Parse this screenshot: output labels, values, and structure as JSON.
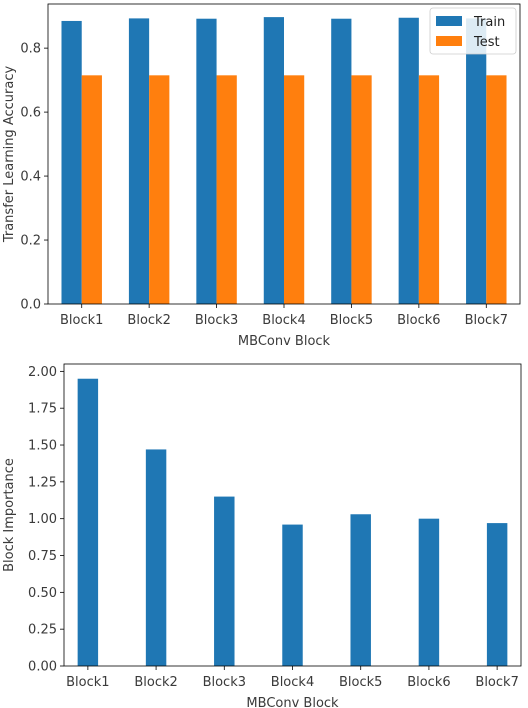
{
  "chart_data": [
    {
      "type": "bar",
      "categories": [
        "Block1",
        "Block2",
        "Block3",
        "Block4",
        "Block5",
        "Block6",
        "Block7"
      ],
      "series": [
        {
          "name": "Train",
          "color": "#1f77b4",
          "values": [
            0.885,
            0.893,
            0.892,
            0.897,
            0.892,
            0.895,
            0.893
          ]
        },
        {
          "name": "Test",
          "color": "#ff7f0e",
          "values": [
            0.715,
            0.715,
            0.715,
            0.715,
            0.715,
            0.715,
            0.715
          ]
        }
      ],
      "xlabel": "MBConv Block",
      "ylabel": "Transfer Learning Accuracy",
      "ylim": [
        0,
        0.938
      ],
      "yticks": [
        "0.0",
        "0.2",
        "0.4",
        "0.6",
        "0.8"
      ],
      "legend": "top-right",
      "grid": false
    },
    {
      "type": "bar",
      "categories": [
        "Block1",
        "Block2",
        "Block3",
        "Block4",
        "Block5",
        "Block6",
        "Block7"
      ],
      "series": [
        {
          "color": "#1f77b4",
          "values": [
            1.95,
            1.47,
            1.15,
            0.96,
            1.03,
            1.0,
            0.97
          ]
        }
      ],
      "xlabel": "MBConv Block",
      "ylabel": "Block Importance",
      "ylim": [
        0,
        2.05
      ],
      "yticks": [
        "0.00",
        "0.25",
        "0.50",
        "0.75",
        "1.00",
        "1.25",
        "1.50",
        "1.75",
        "2.00"
      ],
      "legend": "none",
      "grid": false
    }
  ]
}
